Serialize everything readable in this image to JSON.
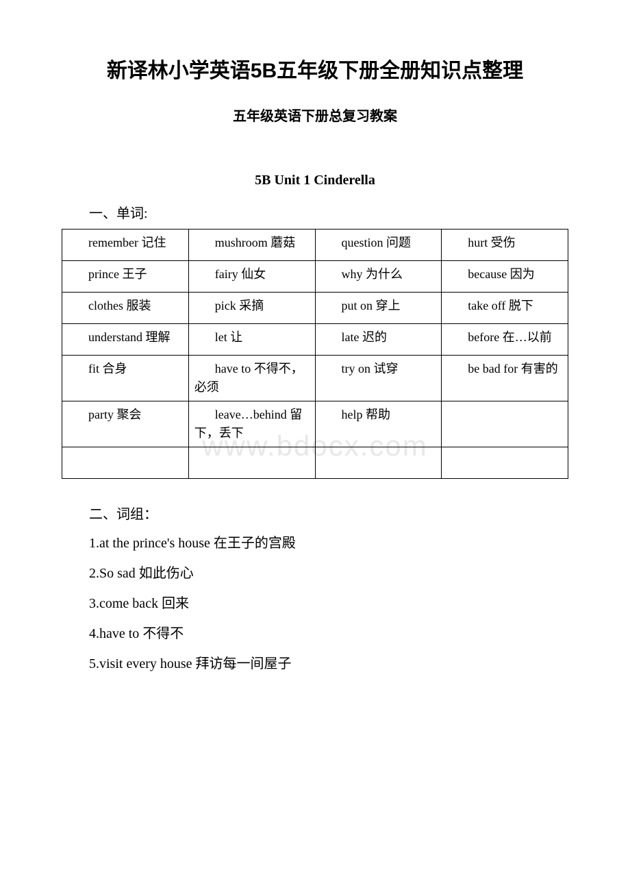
{
  "watermark": "www.bdocx.com",
  "main_title": "新译林小学英语5B五年级下册全册知识点整理",
  "sub_title": "五年级英语下册总复习教案",
  "unit_title": "5B Unit 1 Cinderella",
  "section1_heading": "一、单词:",
  "section2_heading": "二、词组：",
  "vocab_table": {
    "rows": [
      [
        {
          "en": "remember",
          "cn": "记住",
          "wrap": true
        },
        {
          "en": "mushroom",
          "cn": "蘑菇",
          "wrap": true
        },
        {
          "en": "question",
          "cn": "问题",
          "wrap": true
        },
        {
          "en": "hurt",
          "cn": "受伤",
          "wrap": false
        }
      ],
      [
        {
          "en": "prince",
          "cn": "王子",
          "wrap": false
        },
        {
          "en": "fairy",
          "cn": "仙女",
          "wrap": false
        },
        {
          "en": "why",
          "cn": "为什么",
          "wrap": false
        },
        {
          "en": "because",
          "cn": "因为",
          "wrap": true
        }
      ],
      [
        {
          "en": "clothes",
          "cn": "服装",
          "wrap": false
        },
        {
          "en": "pick",
          "cn": "采摘",
          "wrap": false
        },
        {
          "en": "put on",
          "cn": "穿上",
          "wrap": false
        },
        {
          "en": "take off",
          "cn": "脱下",
          "wrap": false
        }
      ],
      [
        {
          "en": "understand",
          "cn": "理解",
          "wrap": true
        },
        {
          "en": "let",
          "cn": "让",
          "wrap": false
        },
        {
          "en": "late",
          "cn": "迟的",
          "wrap": false
        },
        {
          "en": "before",
          "cn": "在…以前",
          "wrap": true
        }
      ],
      [
        {
          "en": "fit",
          "cn": "合身",
          "wrap": false
        },
        {
          "en": "have to",
          "cn": "不得不，必须",
          "wrap": true
        },
        {
          "en": "try on",
          "cn": "试穿",
          "wrap": false
        },
        {
          "en": "be bad for",
          "cn": "有害的",
          "wrap": true
        }
      ],
      [
        {
          "en": "party",
          "cn": "聚会",
          "wrap": false
        },
        {
          "en": "leave…behind",
          "cn": "留下，丢下",
          "wrap": true
        },
        {
          "en": "help",
          "cn": "帮助",
          "wrap": false
        },
        {
          "en": "",
          "cn": "",
          "wrap": false
        }
      ],
      [
        {
          "en": "",
          "cn": "",
          "wrap": false
        },
        {
          "en": "",
          "cn": "",
          "wrap": false
        },
        {
          "en": "",
          "cn": "",
          "wrap": false
        },
        {
          "en": "",
          "cn": "",
          "wrap": false
        }
      ]
    ]
  },
  "phrases": [
    {
      "num": "1.",
      "en": "at the prince's house",
      "cn": "在王子的宫殿"
    },
    {
      "num": "2.",
      "en": "So sad",
      "cn": "如此伤心"
    },
    {
      "num": "3.",
      "en": "come back",
      "cn": "回来"
    },
    {
      "num": "4.",
      "en": "have to",
      "cn": "不得不"
    },
    {
      "num": "5.",
      "en": "visit every house",
      "cn": "拜访每一间屋子"
    }
  ]
}
